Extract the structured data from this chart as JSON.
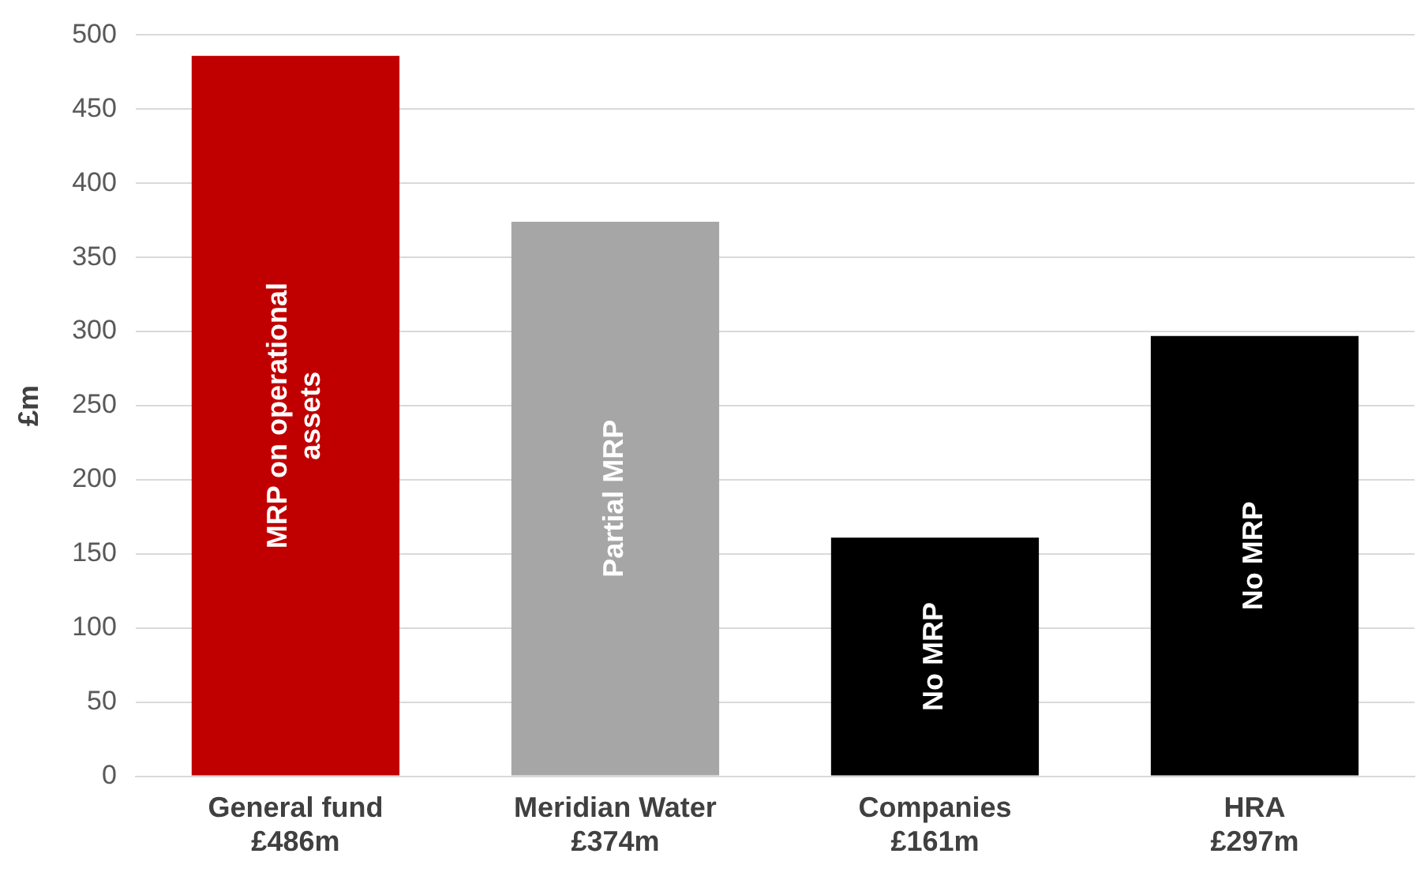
{
  "chart_data": {
    "type": "bar",
    "ylabel": "£m",
    "categories": [
      "General fund\n£486m",
      "Meridian Water\n£374m",
      "Companies\n£161m",
      "HRA\n£297m"
    ],
    "values": [
      486,
      374,
      161,
      297
    ],
    "colors": [
      "#c00000",
      "#a6a6a6",
      "#000000",
      "#000000"
    ],
    "ylim": [
      0,
      500
    ],
    "yticks": [
      0,
      50,
      100,
      150,
      200,
      250,
      300,
      350,
      400,
      450,
      500
    ],
    "grid": "y",
    "legend": false,
    "annotations": [
      "MRP on operational assets",
      "Partial MRP",
      "No MRP",
      "No MRP"
    ]
  }
}
